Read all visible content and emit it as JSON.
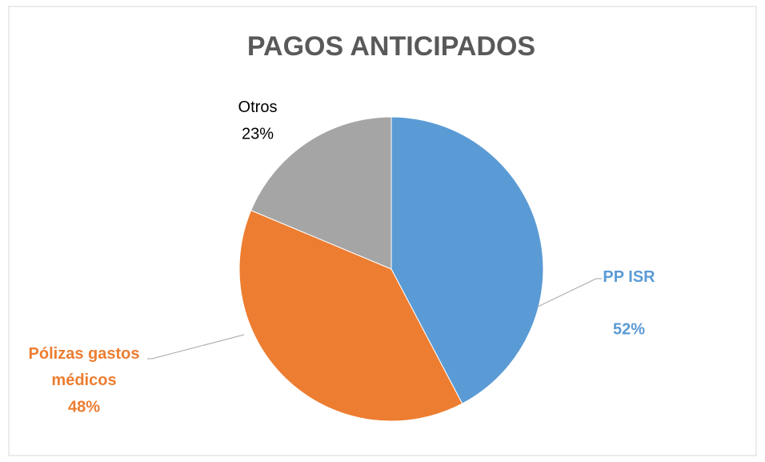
{
  "chart_data": {
    "type": "pie",
    "title": "PAGOS ANTICIPADOS",
    "categories": [
      "PP ISR",
      "Pólizas gastos médicos",
      "Otros"
    ],
    "values": [
      52,
      48,
      23
    ],
    "value_labels": [
      "52%",
      "48%",
      "23%"
    ],
    "colors": [
      "#5b9bd5",
      "#ed7d31",
      "#a5a5a5"
    ]
  }
}
